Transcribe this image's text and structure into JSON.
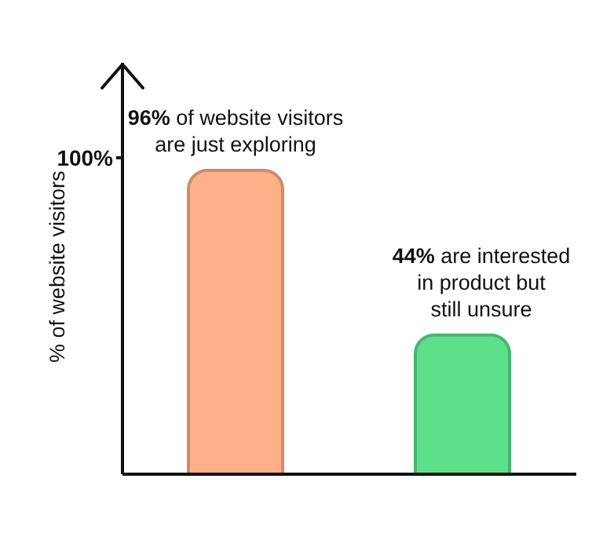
{
  "chart_data": {
    "type": "bar",
    "ylabel": "% of website visitors",
    "categories": [
      null,
      null
    ],
    "values": [
      96,
      44
    ],
    "colors": [
      "#ffb088",
      "#5ce08c"
    ],
    "value_labels": [
      "96% of website visitors are just exploring",
      "44% are interested in product but still unsure"
    ],
    "ylim": [
      0,
      130
    ],
    "yticks": [
      {
        "value": 100,
        "label": "100%"
      }
    ],
    "tick_labels": "y",
    "grid": false,
    "legend": false
  }
}
